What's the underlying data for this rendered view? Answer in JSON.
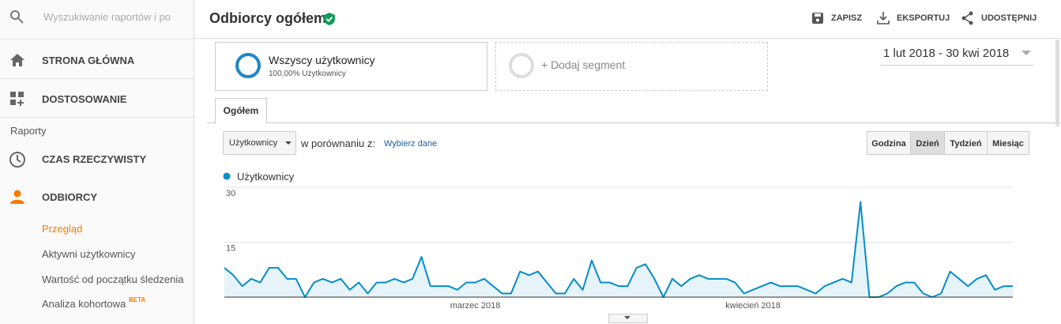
{
  "sidebar": {
    "search_placeholder": "Wyszukiwanie raportów i po",
    "items": [
      "STRONA GŁÓWNA",
      "DOSTOSOWANIE"
    ],
    "section": "Raporty",
    "reports": [
      "CZAS RZECZYWISTY",
      "ODBIORCY"
    ],
    "subitems": [
      "Przegląd",
      "Aktywni użytkownicy",
      "Wartość od początku śledzenia",
      "Analiza kohortowa"
    ],
    "badge": "BETA"
  },
  "header": {
    "title": "Odbiorcy ogółem",
    "actions": [
      "ZAPISZ",
      "EKSPORTUJ",
      "UDOSTĘPNIJ"
    ]
  },
  "segments": [
    {
      "name": "Wszyscy użytkownicy",
      "detail": "100,00% Użytkownicy"
    },
    {
      "name": "+ Dodaj segment"
    }
  ],
  "date_range": "1 lut 2018 - 30 kwi 2018",
  "tab": "Ogółem",
  "metric_selector": "Użytkownicy",
  "compare_label": "w porównaniu z:",
  "compare_link": "Wybierz dane",
  "granularity": [
    "Godzina",
    "Dzień",
    "Tydzień",
    "Miesiąc"
  ],
  "chart_data": {
    "type": "line",
    "categories": [
      null,
      null,
      null,
      null,
      null,
      null,
      null,
      null,
      null,
      null,
      null,
      null,
      null,
      null,
      null,
      null,
      null,
      null,
      null,
      null,
      null,
      null,
      null,
      null,
      null,
      null,
      null,
      null,
      "marzec 2018",
      null,
      null,
      null,
      null,
      null,
      null,
      null,
      null,
      null,
      null,
      null,
      null,
      null,
      null,
      null,
      null,
      null,
      null,
      null,
      null,
      null,
      null,
      null,
      null,
      null,
      null,
      null,
      null,
      null,
      null,
      "kwiecień 2018",
      null,
      null,
      null,
      null,
      null,
      null,
      null,
      null,
      null,
      null,
      null,
      null,
      null,
      null,
      null,
      null,
      null,
      null,
      null,
      null,
      null,
      null,
      null,
      null,
      null,
      null,
      null,
      null,
      null
    ],
    "series": [
      {
        "name": "Użytkownicy",
        "color": "#058dc7",
        "values": [
          8,
          6,
          3,
          5,
          4,
          8,
          8,
          5,
          5,
          0,
          4,
          5,
          4,
          5,
          2,
          4,
          1,
          4,
          4,
          5,
          4,
          5,
          11,
          3,
          3,
          3,
          2,
          4,
          4,
          5,
          3,
          1,
          1,
          7,
          6,
          7,
          4,
          1,
          1,
          5,
          2,
          10,
          4,
          4,
          3,
          3,
          8,
          9,
          5,
          0,
          5,
          3,
          5,
          6,
          5,
          5,
          5,
          4,
          1,
          2,
          3,
          4,
          3,
          3,
          3,
          2,
          1,
          3,
          4,
          5,
          4,
          26,
          0,
          0,
          1,
          3,
          4,
          4,
          1,
          0,
          1,
          7,
          5,
          3,
          5,
          6,
          2,
          3,
          3
        ]
      }
    ],
    "ylim": [
      0,
      30
    ],
    "yticks": [
      15,
      30
    ],
    "grid": true
  }
}
